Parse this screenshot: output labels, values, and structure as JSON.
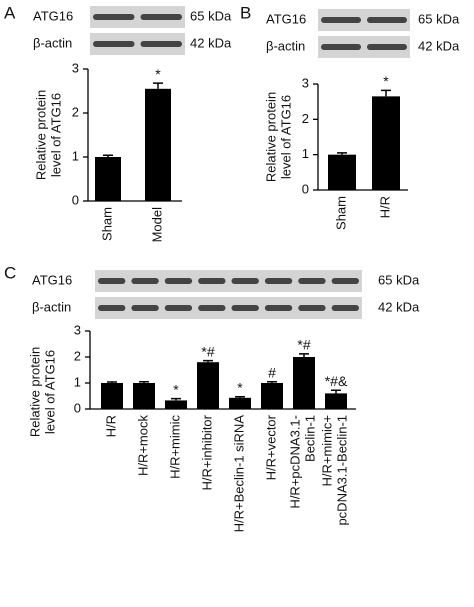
{
  "chart_data": [
    {
      "type": "bar",
      "panel": "A",
      "blot": [
        {
          "label": "ATG16",
          "size": "65 kDa"
        },
        {
          "label": "β-actin",
          "size": "42 kDa"
        }
      ],
      "y_label": "Relative protein\nlevel of ATG16",
      "categories": [
        "Sham",
        "Model"
      ],
      "values": [
        1,
        2.55
      ],
      "errors": [
        0.04,
        0.13
      ],
      "annotations": [
        null,
        "*"
      ],
      "color": "#000000",
      "ylim": [
        0,
        3
      ],
      "yticks": [
        0,
        1,
        2,
        3
      ]
    },
    {
      "type": "bar",
      "panel": "B",
      "blot": [
        {
          "label": "ATG16",
          "size": "65 kDa"
        },
        {
          "label": "β-actin",
          "size": "42 kDa"
        }
      ],
      "y_label": "Relative protein\nlevel of ATG16",
      "categories": [
        "Sham",
        "H/R"
      ],
      "values": [
        1,
        2.65
      ],
      "errors": [
        0.05,
        0.17
      ],
      "annotations": [
        null,
        "*"
      ],
      "color": "#000000",
      "ylim": [
        0,
        3
      ],
      "yticks": [
        0,
        1,
        2,
        3
      ]
    },
    {
      "type": "bar",
      "panel": "C",
      "blot": [
        {
          "label": "ATG16",
          "size": "65 kDa"
        },
        {
          "label": "β-actin",
          "size": "42 kDa"
        }
      ],
      "y_label": "Relative protein\nlevel of ATG16",
      "categories": [
        "H/R",
        "H/R+mock",
        "H/R+mimic",
        "H/R+inhibitor",
        "H/R+Beclin-1 siRNA",
        "H/R+vector",
        "H/R+pcDNA3.1-\nBeclin-1",
        "H/R+mimic+\npcDNA3.1-Beclin-1"
      ],
      "values": [
        1,
        1,
        0.33,
        1.8,
        0.43,
        1,
        2,
        0.6
      ],
      "errors": [
        0.04,
        0.05,
        0.07,
        0.06,
        0.04,
        0.05,
        0.12,
        0.12
      ],
      "annotations": [
        null,
        null,
        "*",
        "*#",
        "*",
        "#",
        "*#",
        "*#&"
      ],
      "color": "#000000",
      "ylim": [
        0,
        3
      ],
      "yticks": [
        0,
        1,
        2,
        3
      ]
    }
  ]
}
